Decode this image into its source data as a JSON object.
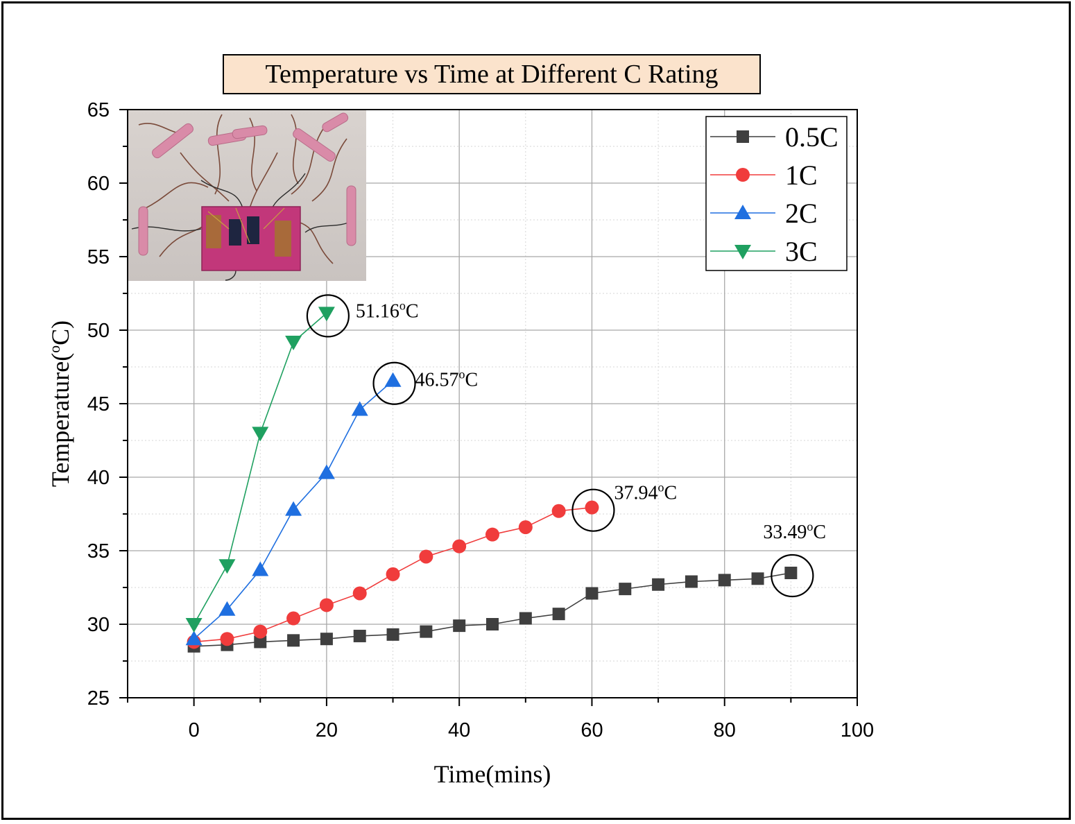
{
  "chart_data": {
    "type": "line",
    "title": "Temperature vs Time at Different C Rating",
    "xlabel": "Time(mins)",
    "ylabel_main": "Temperature(",
    "ylabel_sup": "o",
    "ylabel_end": "C)",
    "xlim": [
      -10,
      100
    ],
    "ylim": [
      25,
      65
    ],
    "xticks": [
      0,
      20,
      40,
      60,
      80,
      100
    ],
    "yticks": [
      25,
      30,
      35,
      40,
      45,
      50,
      55,
      60,
      65
    ],
    "grid": true,
    "legend_position": "top-right",
    "series": [
      {
        "name": "0.5C",
        "color": "#3f3f3f",
        "marker": "square",
        "x": [
          0,
          5,
          10,
          15,
          20,
          25,
          30,
          35,
          40,
          45,
          50,
          55,
          60,
          65,
          70,
          75,
          80,
          85,
          90
        ],
        "y": [
          28.5,
          28.6,
          28.8,
          28.9,
          29.0,
          29.2,
          29.3,
          29.5,
          29.9,
          30.0,
          30.4,
          30.7,
          32.1,
          32.4,
          32.7,
          32.9,
          33.0,
          33.1,
          33.49
        ]
      },
      {
        "name": "1C",
        "color": "#f03c3c",
        "marker": "circle",
        "x": [
          0,
          5,
          10,
          15,
          20,
          25,
          30,
          35,
          40,
          45,
          50,
          55,
          60
        ],
        "y": [
          28.8,
          29.0,
          29.5,
          30.4,
          31.3,
          32.1,
          33.4,
          34.6,
          35.3,
          36.1,
          36.6,
          37.7,
          37.94
        ]
      },
      {
        "name": "2C",
        "color": "#1f6fe0",
        "marker": "triangle-up",
        "x": [
          0,
          5,
          10,
          15,
          20,
          25,
          30
        ],
        "y": [
          29.0,
          31.0,
          33.7,
          37.8,
          40.3,
          44.6,
          46.57
        ]
      },
      {
        "name": "3C",
        "color": "#1fa060",
        "marker": "triangle-down",
        "x": [
          0,
          5,
          10,
          15,
          20
        ],
        "y": [
          30.0,
          34.0,
          43.0,
          49.2,
          51.16
        ]
      }
    ],
    "annotations": [
      {
        "series": 3,
        "x": 20,
        "y": 51.16,
        "main": "51.16",
        "sup": "o",
        "unit": "C"
      },
      {
        "series": 2,
        "x": 30,
        "y": 46.57,
        "main": "46.57",
        "sup": "o",
        "unit": "C"
      },
      {
        "series": 1,
        "x": 60,
        "y": 37.94,
        "main": "37.94",
        "sup": "o",
        "unit": "C"
      },
      {
        "series": 0,
        "x": 90,
        "y": 33.49,
        "main": "33.49",
        "sup": "o",
        "unit": "C"
      }
    ]
  }
}
